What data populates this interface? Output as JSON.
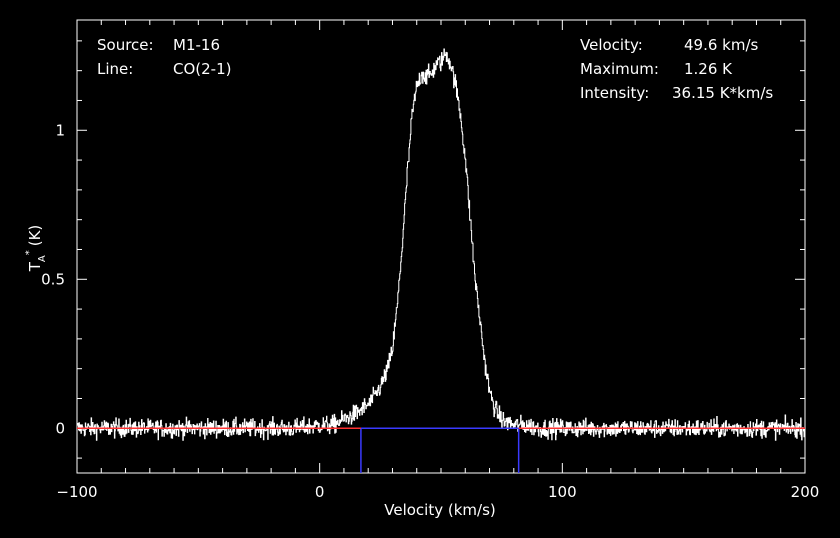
{
  "chart_data": {
    "type": "line",
    "title": "",
    "xlabel": "Velocity (km/s)",
    "ylabel_base": "T",
    "ylabel_sub": "A",
    "ylabel_sup": "*",
    "ylabel_unit": "(K)",
    "xlim": [
      -100,
      200
    ],
    "ylim": [
      -0.15,
      1.37
    ],
    "xticks": [
      -100,
      0,
      100,
      200
    ],
    "xtick_labels": [
      "−100",
      "0",
      "100",
      "200"
    ],
    "yticks": [
      0,
      0.5,
      1
    ],
    "ytick_labels": [
      "0",
      "0.5",
      "1"
    ],
    "grid": false,
    "series": [
      {
        "color": "#ffffff",
        "x": [
          -100,
          -90,
          -80,
          -70,
          -60,
          -50,
          -40,
          -30,
          -20,
          -10,
          0,
          5,
          10,
          15,
          20,
          22,
          25,
          28,
          30,
          32,
          34,
          36,
          38,
          40,
          42,
          44,
          46,
          48,
          50,
          52,
          54,
          56,
          58,
          60,
          62,
          64,
          66,
          68,
          70,
          72,
          74,
          76,
          78,
          80,
          85,
          90,
          100,
          110,
          120,
          130,
          140,
          150,
          160,
          170,
          180,
          190,
          200
        ],
        "y": [
          0,
          0,
          0,
          0,
          0,
          0,
          0,
          0,
          0,
          0,
          0.01,
          0.01,
          0.03,
          0.05,
          0.08,
          0.1,
          0.14,
          0.2,
          0.27,
          0.42,
          0.62,
          0.85,
          1.05,
          1.15,
          1.19,
          1.18,
          1.19,
          1.22,
          1.23,
          1.26,
          1.22,
          1.15,
          1.05,
          0.9,
          0.7,
          0.5,
          0.36,
          0.22,
          0.12,
          0.07,
          0.04,
          0.02,
          0.02,
          0.01,
          0.01,
          0,
          0,
          0,
          0,
          0,
          0,
          0,
          0,
          0,
          0,
          0,
          0
        ],
        "noise": 0.022
      }
    ],
    "baseline": {
      "value": 0,
      "color": "#ff3030"
    },
    "integration_window": {
      "x_start": 17,
      "x_end": 82,
      "color": "#3a3aff"
    }
  },
  "annotations": {
    "source_label": "Source:",
    "source_value": "M1-16",
    "line_label": "Line:",
    "line_value": "CO(2-1)",
    "velocity_label": "Velocity:",
    "velocity_value": "49.6 km/s",
    "maximum_label": "Maximum:",
    "maximum_value": "1.26 K",
    "intensity_label": "Intensity:",
    "intensity_value": "36.15 K*km/s"
  }
}
